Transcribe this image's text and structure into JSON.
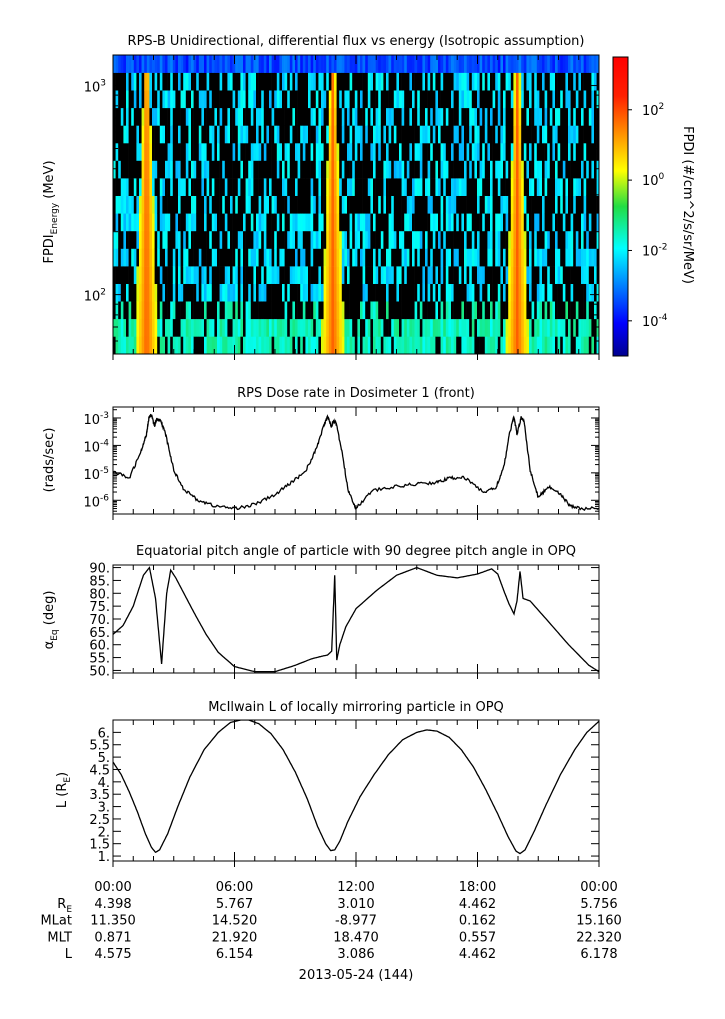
{
  "chart_data": [
    {
      "type": "heatmap",
      "title": "RPS-B  Unidirectional, differential flux vs energy (Isotropic assumption)",
      "ylabel_main": "FPDI",
      "ylabel_sub": "Energy",
      "ylabel_unit": " (MeV)",
      "y_scale": "log",
      "ylim": [
        52,
        1400
      ],
      "y_ticks": [
        {
          "value": 100,
          "base": "10",
          "exp": "2"
        },
        {
          "value": 1000,
          "base": "10",
          "exp": "3"
        }
      ],
      "x_hours": [
        0,
        24
      ],
      "flux_peaks_hours": [
        1.6,
        10.8,
        19.9
      ],
      "colorbar": {
        "label": "FPDI (#/cm^2/s/sr/MeV)",
        "range_log10": [
          -5,
          3.5
        ],
        "ticks": [
          {
            "exp": "-4",
            "value": -4
          },
          {
            "exp": "-2",
            "value": -2
          },
          {
            "exp": "0",
            "value": 0
          },
          {
            "exp": "2",
            "value": 2
          }
        ]
      }
    },
    {
      "type": "line",
      "title": "RPS  Dose rate in Dosimeter 1 (front)",
      "ylabel": "(rads/sec)",
      "y_scale": "log",
      "ylim_log10": [
        -6.5,
        -2.6
      ],
      "y_ticks": [
        {
          "exp": "-6",
          "value": -6
        },
        {
          "exp": "-5",
          "value": -5
        },
        {
          "exp": "-4",
          "value": -4
        },
        {
          "exp": "-3",
          "value": -3
        }
      ],
      "x_hours": [
        0,
        0.8,
        1.4,
        1.65,
        1.78,
        1.9,
        2.05,
        2.15,
        2.35,
        2.6,
        3.0,
        3.5,
        4.2,
        5.0,
        6.0,
        7.0,
        8.0,
        8.8,
        9.5,
        10.0,
        10.4,
        10.6,
        10.78,
        10.9,
        11.0,
        11.3,
        11.6,
        12.0,
        12.8,
        14.0,
        15.0,
        16.0,
        16.6,
        17.3,
        18.3,
        18.9,
        19.3,
        19.6,
        19.8,
        19.95,
        20.15,
        20.3,
        20.6,
        21.0,
        21.5,
        22.0,
        22.5,
        23.0,
        24.0
      ],
      "values_log10": [
        -4.95,
        -5.2,
        -4.2,
        -3.6,
        -2.95,
        -2.9,
        -3.3,
        -3.05,
        -3.1,
        -3.6,
        -4.9,
        -5.6,
        -6.0,
        -6.2,
        -6.3,
        -6.15,
        -5.8,
        -5.35,
        -4.95,
        -4.2,
        -3.3,
        -2.95,
        -3.3,
        -3.1,
        -3.15,
        -4.2,
        -5.6,
        -6.3,
        -5.65,
        -5.5,
        -5.4,
        -5.35,
        -5.2,
        -5.15,
        -5.7,
        -5.55,
        -4.8,
        -3.5,
        -2.95,
        -3.6,
        -3.0,
        -3.1,
        -4.9,
        -5.9,
        -5.5,
        -5.7,
        -6.15,
        -6.3,
        -6.3
      ]
    },
    {
      "type": "line",
      "title": "Equatorial pitch angle of particle with 90 degree pitch angle in OPQ",
      "ylabel_main": "α",
      "ylabel_sub": "Eq",
      "ylabel_unit": " (deg)",
      "ylim": [
        49,
        91
      ],
      "y_ticks": [
        50,
        55,
        60,
        65,
        70,
        75,
        80,
        85,
        90
      ],
      "x_hours": [
        0,
        0.5,
        1.0,
        1.5,
        1.8,
        2.1,
        2.4,
        2.65,
        2.85,
        3.1,
        3.5,
        4.0,
        4.6,
        5.2,
        6.0,
        7.0,
        8.0,
        9.0,
        9.8,
        10.3,
        10.6,
        10.8,
        10.95,
        11.05,
        11.2,
        11.5,
        12.0,
        13.0,
        14.0,
        15.0,
        16.0,
        17.0,
        18.0,
        18.7,
        19.0,
        19.3,
        19.55,
        19.8,
        19.95,
        20.1,
        20.25,
        20.6,
        21.5,
        22.5,
        23.5,
        24.0
      ],
      "values": [
        64,
        67.5,
        75,
        87,
        90,
        78,
        52.5,
        80,
        89,
        86,
        80,
        72.5,
        64,
        57,
        51.5,
        49.5,
        49.5,
        52,
        54.5,
        55.5,
        56,
        57.5,
        87,
        54,
        60,
        67,
        74,
        81,
        87,
        90,
        87,
        86,
        87.5,
        89.5,
        87.5,
        81,
        76,
        72,
        77,
        88.5,
        78,
        77,
        69,
        60,
        52,
        49.5
      ]
    },
    {
      "type": "line",
      "title": "McIlwain L of locally mirroring particle in OPQ",
      "ylabel_main": "L (R",
      "ylabel_sub": "E",
      "ylabel_unit": ")",
      "ylim": [
        0.8,
        6.5
      ],
      "y_ticks": [
        {
          "value": 1,
          "label": "1."
        },
        {
          "value": 1.5,
          "label": "1.5"
        },
        {
          "value": 2,
          "label": "2."
        },
        {
          "value": 2.5,
          "label": "2.5"
        },
        {
          "value": 3,
          "label": "3."
        },
        {
          "value": 3.5,
          "label": "3.5"
        },
        {
          "value": 4,
          "label": "4."
        },
        {
          "value": 4.5,
          "label": "4.5"
        },
        {
          "value": 5,
          "label": "5."
        },
        {
          "value": 5.5,
          "label": "5.5"
        },
        {
          "value": 6,
          "label": "6."
        }
      ],
      "x_hours": [
        0,
        0.4,
        0.8,
        1.2,
        1.6,
        1.9,
        2.1,
        2.3,
        2.7,
        3.2,
        3.8,
        4.5,
        5.2,
        5.8,
        6.3,
        6.7,
        7.2,
        7.8,
        8.4,
        9.0,
        9.6,
        10.1,
        10.5,
        10.75,
        10.95,
        11.2,
        11.6,
        12.2,
        12.9,
        13.6,
        14.3,
        15.0,
        15.5,
        16.0,
        16.6,
        17.2,
        17.8,
        18.4,
        19.0,
        19.5,
        19.9,
        20.1,
        20.35,
        20.8,
        21.4,
        22.1,
        22.8,
        23.4,
        24.0
      ],
      "values": [
        4.8,
        4.3,
        3.6,
        2.8,
        1.9,
        1.35,
        1.15,
        1.25,
        1.9,
        3.0,
        4.2,
        5.3,
        6.0,
        6.4,
        6.5,
        6.5,
        6.35,
        5.95,
        5.3,
        4.4,
        3.3,
        2.2,
        1.5,
        1.22,
        1.25,
        1.6,
        2.4,
        3.4,
        4.3,
        5.1,
        5.7,
        6.0,
        6.1,
        6.05,
        5.8,
        5.3,
        4.6,
        3.7,
        2.7,
        1.8,
        1.2,
        1.1,
        1.25,
        2.0,
        3.1,
        4.3,
        5.3,
        6.0,
        6.45
      ]
    }
  ],
  "axis": {
    "x_tick_labels": [
      "00:00",
      "06:00",
      "12:00",
      "18:00",
      "00:00"
    ],
    "date_label": "2013-05-24 (144)"
  },
  "ephemeris": {
    "rows": [
      {
        "label_main": "R",
        "label_sub": "E",
        "values": [
          "4.398",
          "5.767",
          "3.010",
          "4.462",
          "5.756"
        ]
      },
      {
        "label_main": "MLat",
        "label_sub": "",
        "values": [
          "11.350",
          "14.520",
          "-8.977",
          "0.162",
          "15.160"
        ]
      },
      {
        "label_main": "MLT",
        "label_sub": "",
        "values": [
          "0.871",
          "21.920",
          "18.470",
          "0.557",
          "22.320"
        ]
      },
      {
        "label_main": "L",
        "label_sub": "",
        "values": [
          "4.575",
          "6.154",
          "3.086",
          "4.462",
          "6.178"
        ]
      }
    ]
  }
}
